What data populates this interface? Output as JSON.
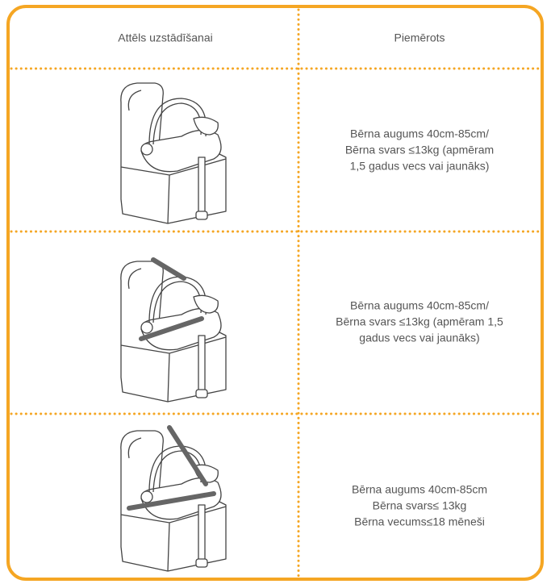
{
  "table": {
    "header": [
      "Attēls uzstādīšanai",
      "Piemērots"
    ],
    "rows": [
      {
        "suitable": [
          "Bērna augums 40cm-85cm/",
          "Bērna svars ≤13kg (apmēram",
          "1,5 gadus vecs vai jaunāks)"
        ]
      },
      {
        "suitable": [
          "Bērna augums 40cm-85cm/",
          "Bērna svars ≤13kg (apmēram 1,5",
          "gadus vecs vai jaunāks)"
        ]
      },
      {
        "suitable": [
          "Bērna augums 40cm-85cm",
          "Bērna svars≤ 13kg",
          "Bērna vecums≤18 mēneši"
        ]
      }
    ]
  }
}
